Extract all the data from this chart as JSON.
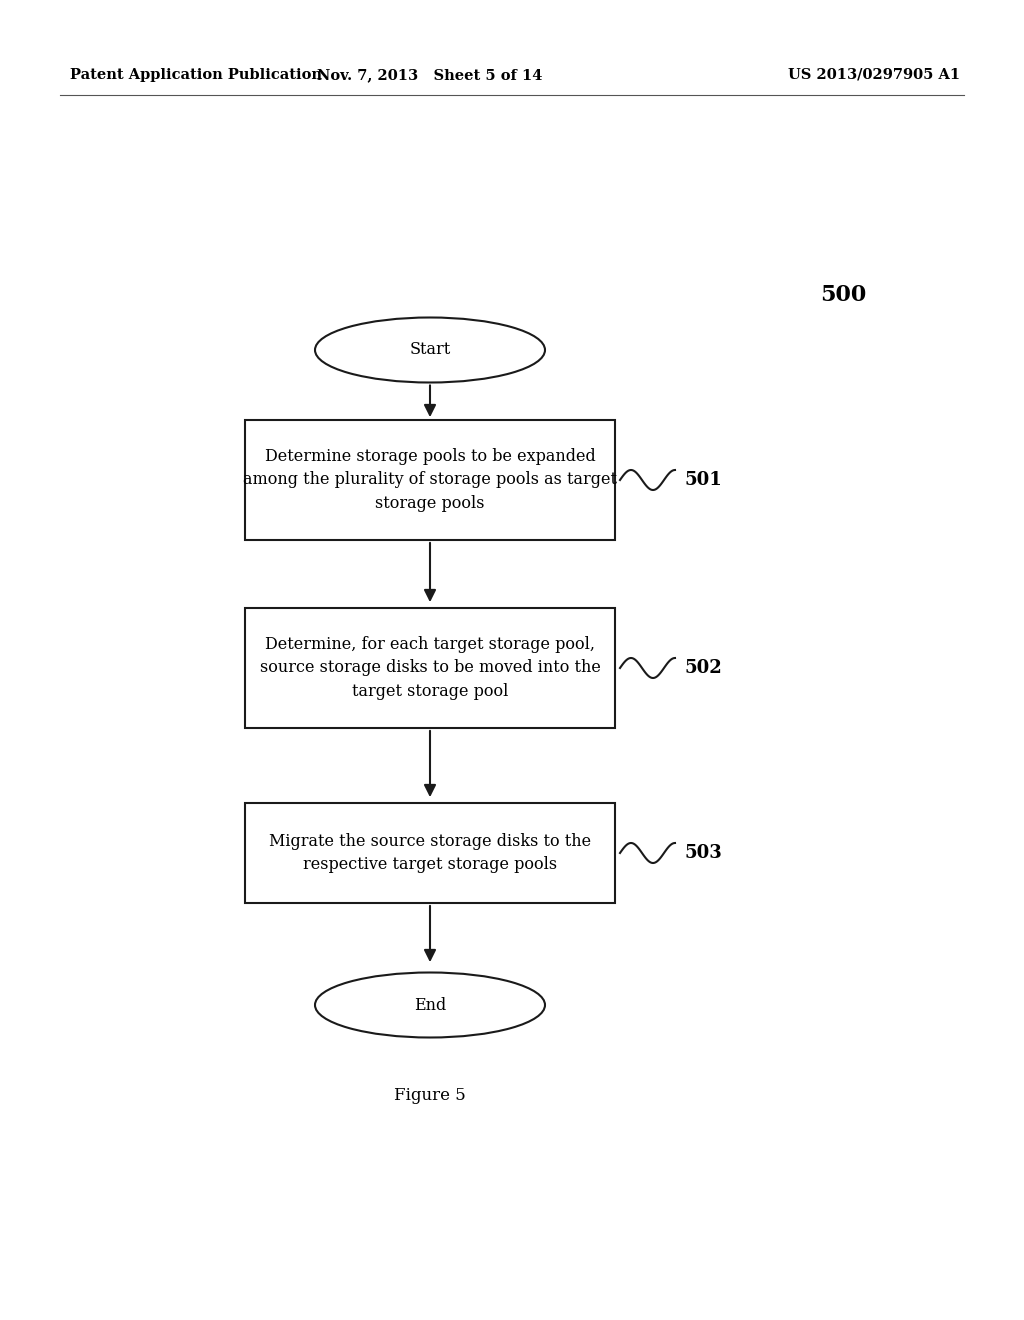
{
  "bg_color": "#ffffff",
  "header_left": "Patent Application Publication",
  "header_center": "Nov. 7, 2013   Sheet 5 of 14",
  "header_right": "US 2013/0297905 A1",
  "figure_label": "Figure 5",
  "diagram_number": "500",
  "start_label": "Start",
  "end_label": "End",
  "boxes": [
    {
      "label": "501",
      "text": "Determine storage pools to be expanded\namong the plurality of storage pools as target\nstorage pools"
    },
    {
      "label": "502",
      "text": "Determine, for each target storage pool,\nsource storage disks to be moved into the\ntarget storage pool"
    },
    {
      "label": "503",
      "text": "Migrate the source storage disks to the\nrespective target storage pools"
    }
  ],
  "text_color": "#000000",
  "box_edge_color": "#1a1a1a",
  "box_fill_color": "#ffffff",
  "arrow_color": "#1a1a1a",
  "font_size_header": 10.5,
  "font_size_diagram": 11.5,
  "font_size_label": 13,
  "font_size_number": 16,
  "font_size_figure": 12
}
